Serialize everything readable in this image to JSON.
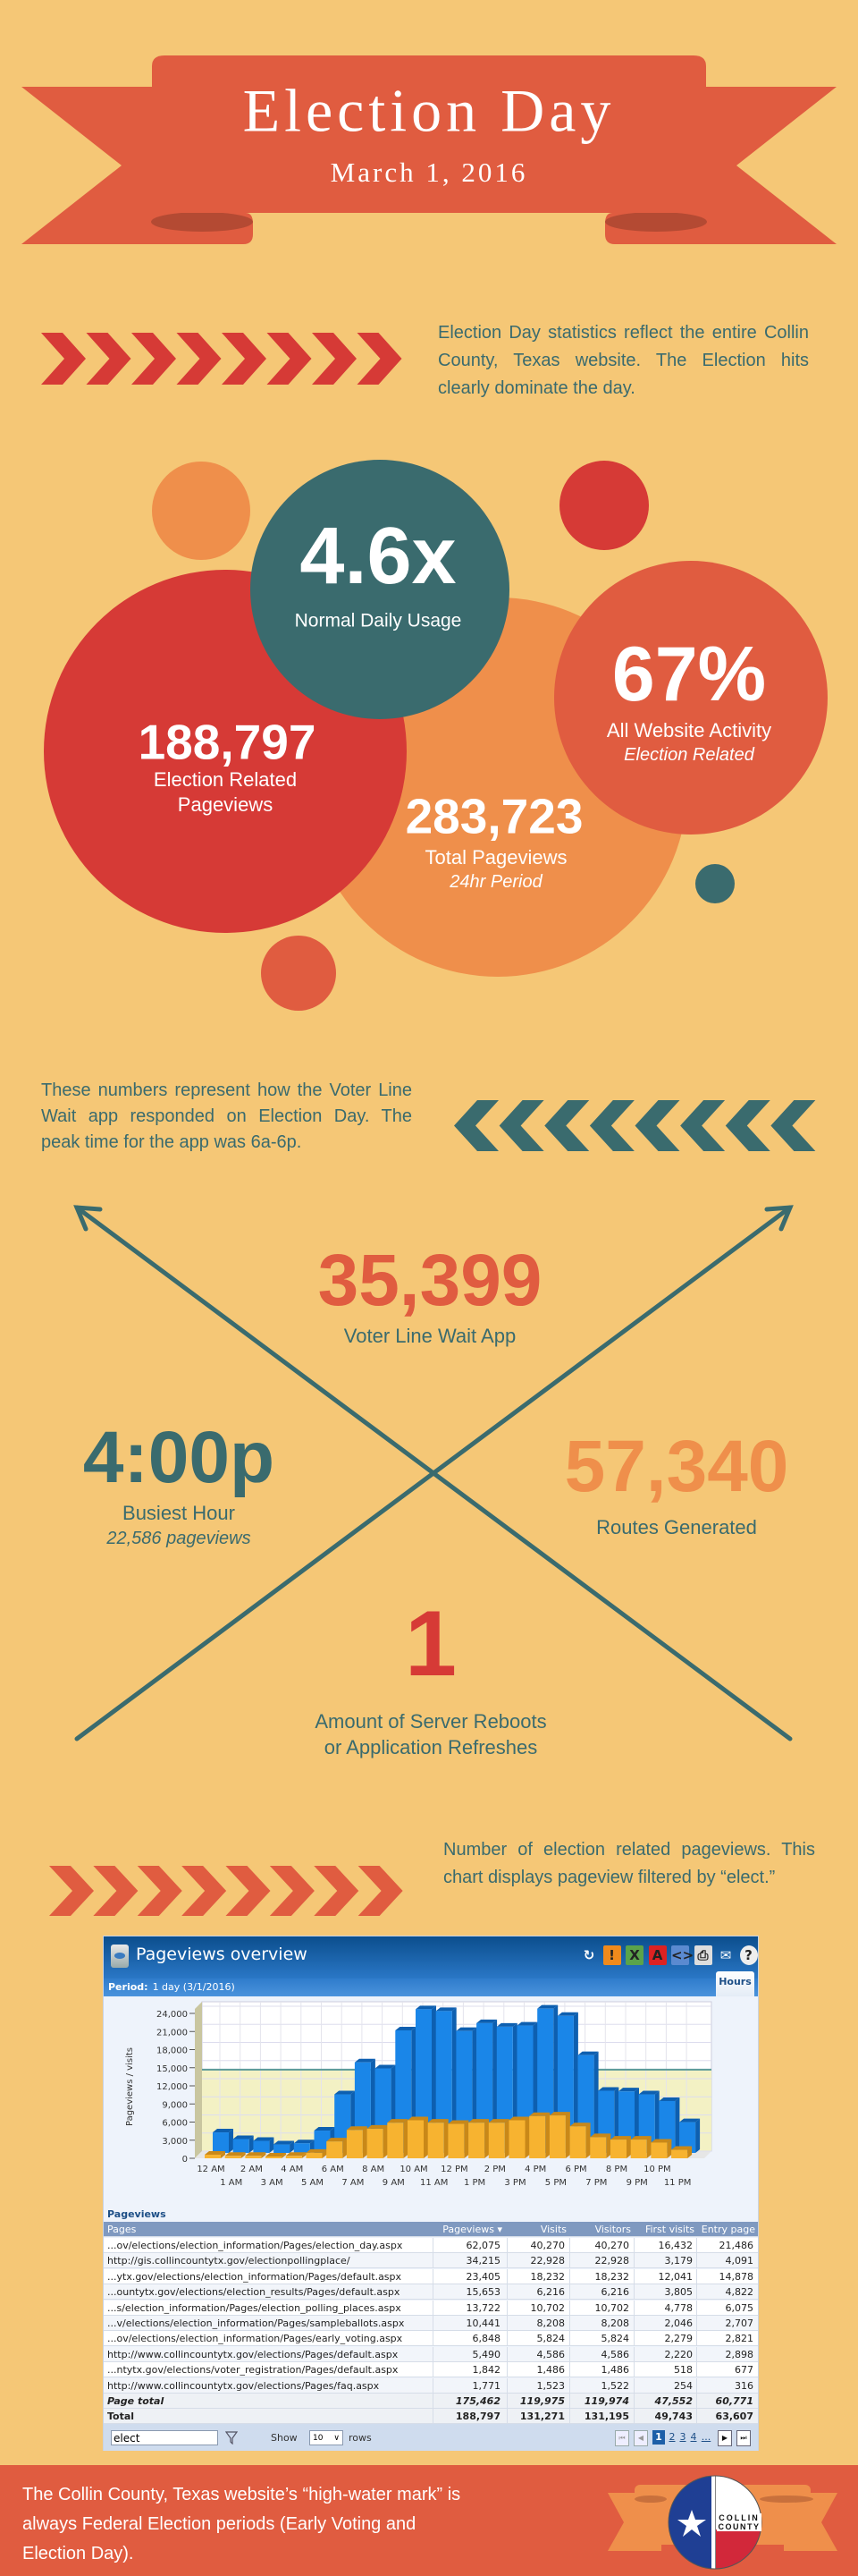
{
  "colors": {
    "background": "#f5c776",
    "red": "#d63a36",
    "teal": "#3a6b6e",
    "orange": "#ef8f4b",
    "red_orange": "#e05c40",
    "ribbon_dark": "#b44a33"
  },
  "header": {
    "title": "Election Day",
    "date": "March 1, 2016"
  },
  "intro": {
    "text": "Election Day statistics reflect  the entire Collin County, Texas website.  The Election hits clearly dominate the day."
  },
  "stats": {
    "usage": {
      "value": "4.6x",
      "label": "Normal Daily Usage"
    },
    "election_pageviews": {
      "value": "188,797",
      "label1": "Election Related",
      "label2": "Pageviews"
    },
    "total_pageviews": {
      "value": "283,723",
      "label": "Total Pageviews",
      "sublabel": "24hr Period"
    },
    "activity": {
      "value": "67%",
      "label": "All Website Activity",
      "sublabel": "Election Related"
    }
  },
  "app": {
    "text": "These numbers represent how the Voter Line Wait app responded on Election Day. The peak time for the app was 6a-6p.",
    "visits": {
      "value": "35,399",
      "label": "Voter Line Wait App"
    },
    "busiest": {
      "value": "4:00p",
      "label": "Busiest Hour",
      "sublabel": "22,586 pageviews"
    },
    "routes": {
      "value": "57,340",
      "label": "Routes Generated"
    },
    "reboots": {
      "value": "1",
      "label1": "Amount of Server Reboots",
      "label2": "or Application Refreshes"
    }
  },
  "chart_intro": {
    "text": "Number of election related pageviews. This chart displays pageview filtered by “elect.”"
  },
  "dashboard": {
    "title": "Pageviews overview",
    "toolbar_icons": [
      "refresh-icon",
      "alert-icon",
      "excel-export-icon",
      "pdf-export-icon",
      "xml-export-icon",
      "print-icon",
      "email-icon",
      "help-icon"
    ],
    "period_label": "Period:",
    "period_value": "1 day (3/1/2016)",
    "tab": "Hours",
    "section_label": "Pageviews",
    "columns": [
      "Pages",
      "Pageviews ▾",
      "Visits",
      "Visitors",
      "First visits",
      "Entry page"
    ],
    "rows": [
      [
        "...ov/elections/election_information/Pages/election_day.aspx",
        "62,075",
        "40,270",
        "40,270",
        "16,432",
        "21,486"
      ],
      [
        "http://gis.collincountytx.gov/electionpollingplace/",
        "34,215",
        "22,928",
        "22,928",
        "3,179",
        "4,091"
      ],
      [
        "...ytx.gov/elections/election_information/Pages/default.aspx",
        "23,405",
        "18,232",
        "18,232",
        "12,041",
        "14,878"
      ],
      [
        "...ountytx.gov/elections/election_results/Pages/default.aspx",
        "15,653",
        "6,216",
        "6,216",
        "3,805",
        "4,822"
      ],
      [
        "...s/election_information/Pages/election_polling_places.aspx",
        "13,722",
        "10,702",
        "10,702",
        "4,778",
        "6,075"
      ],
      [
        "...v/elections/election_information/Pages/sampleballots.aspx",
        "10,441",
        "8,208",
        "8,208",
        "2,046",
        "2,707"
      ],
      [
        "...ov/elections/election_information/Pages/early_voting.aspx",
        "6,848",
        "5,824",
        "5,824",
        "2,279",
        "2,821"
      ],
      [
        "http://www.collincountytx.gov/elections/Pages/default.aspx",
        "5,490",
        "4,586",
        "4,586",
        "2,220",
        "2,898"
      ],
      [
        "...ntytx.gov/elections/voter_registration/Pages/default.aspx",
        "1,842",
        "1,486",
        "1,486",
        "518",
        "677"
      ],
      [
        "http://www.collincountytx.gov/elections/Pages/faq.aspx",
        "1,771",
        "1,523",
        "1,522",
        "254",
        "316"
      ]
    ],
    "page_total": [
      "Page total",
      "175,462",
      "119,975",
      "119,974",
      "47,552",
      "60,771"
    ],
    "total": [
      "Total",
      "188,797",
      "131,271",
      "131,195",
      "49,743",
      "63,607"
    ],
    "filter_value": "elect",
    "show_label": "Show",
    "rows_select": "10",
    "rows_label": "rows",
    "pages": [
      "1",
      "2",
      "3",
      "4",
      "..."
    ]
  },
  "chart_data": {
    "type": "bar",
    "title": "",
    "xlabel": "",
    "ylabel": "Pageviews / visits",
    "ylim": [
      0,
      24000
    ],
    "yticks": [
      "0",
      "3,000",
      "6,000",
      "9,000",
      "12,000",
      "15,000",
      "18,000",
      "21,000",
      "24,000"
    ],
    "categories": [
      "12 AM",
      "1 AM",
      "2 AM",
      "3 AM",
      "4 AM",
      "5 AM",
      "6 AM",
      "7 AM",
      "8 AM",
      "9 AM",
      "10 AM",
      "11 AM",
      "12 PM",
      "1 PM",
      "2 PM",
      "3 PM",
      "4 PM",
      "5 PM",
      "6 PM",
      "7 PM",
      "8 PM",
      "9 PM",
      "10 PM",
      "11 PM"
    ],
    "series": [
      {
        "color": "#1a86e8",
        "values": [
          3400,
          2300,
          2000,
          1400,
          1600,
          3700,
          9700,
          15000,
          14000,
          20300,
          23800,
          23500,
          20200,
          21500,
          20900,
          21100,
          23900,
          22700,
          16200,
          10300,
          10200,
          9700,
          8600,
          5100
        ]
      },
      {
        "color": "#f7b330",
        "values": [
          600,
          400,
          400,
          300,
          400,
          900,
          2800,
          4700,
          4900,
          5900,
          6300,
          5900,
          5700,
          5900,
          5900,
          6300,
          7000,
          7100,
          5300,
          3500,
          3100,
          3100,
          2600,
          1400
        ]
      }
    ],
    "reference_line": 13500,
    "grid": true,
    "style": "3d"
  },
  "footer": {
    "line1": "The Collin County, Texas website’s “high-water mark” is",
    "line2": "always Federal Election periods (Early Voting and",
    "line3": "Election Day).",
    "logo_text1": "COLLIN",
    "logo_text2": "COUNTY"
  }
}
